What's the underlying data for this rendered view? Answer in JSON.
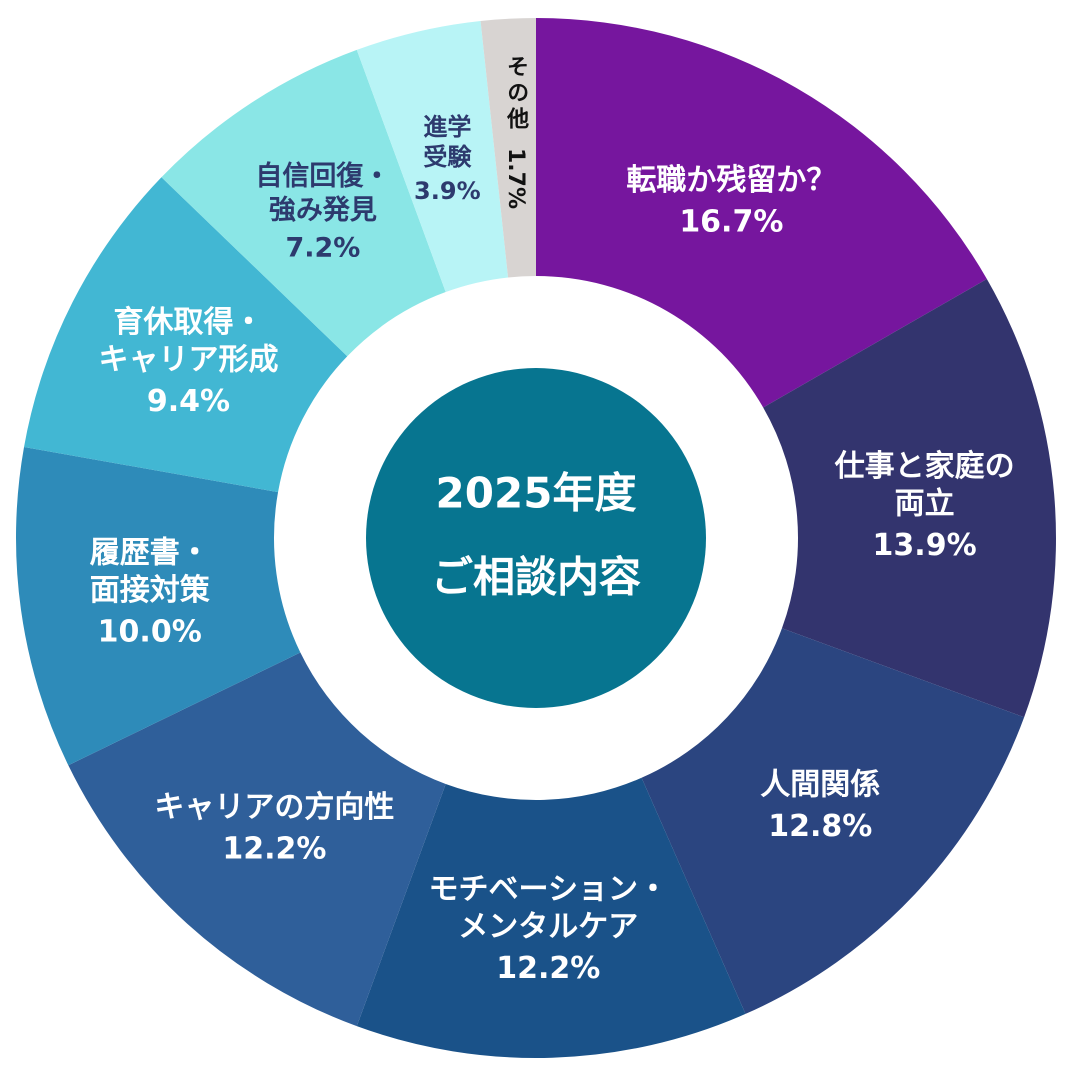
{
  "chart_data": {
    "type": "pie",
    "center_text": [
      "2025年度",
      "ご相談内容"
    ],
    "categories": [
      [
        "転職か残留か？"
      ],
      [
        "仕事と家庭の",
        "両立"
      ],
      [
        "人間関係"
      ],
      [
        "モチベーション・",
        "メンタルケア"
      ],
      [
        "キャリアの方向性"
      ],
      [
        "履歴書・",
        "面接対策"
      ],
      [
        "育休取得・",
        "キャリア形成"
      ],
      [
        "自信回復・",
        "強み発見"
      ],
      [
        "進学",
        "受験"
      ],
      [
        "その他"
      ]
    ],
    "values": [
      16.7,
      13.9,
      12.8,
      12.2,
      12.2,
      10.0,
      9.4,
      7.2,
      3.9,
      1.7
    ],
    "value_labels": [
      "16.7%",
      "13.9%",
      "12.8%",
      "12.2%",
      "12.2%",
      "10.0%",
      "9.4%",
      "7.2%",
      "3.9%",
      "1.7%"
    ],
    "colors": [
      "#76169e",
      "#33346e",
      "#2b4580",
      "#1a5289",
      "#2f5f9a",
      "#2e8bb9",
      "#42b7d3",
      "#8ae6e6",
      "#b8f4f6",
      "#d8d4d2"
    ],
    "label_colors": [
      "#ffffff",
      "#ffffff",
      "#ffffff",
      "#ffffff",
      "#ffffff",
      "#ffffff",
      "#ffffff",
      "#2d3a6e",
      "#2d3a6e",
      "#111111"
    ],
    "center_color": "#077590"
  }
}
